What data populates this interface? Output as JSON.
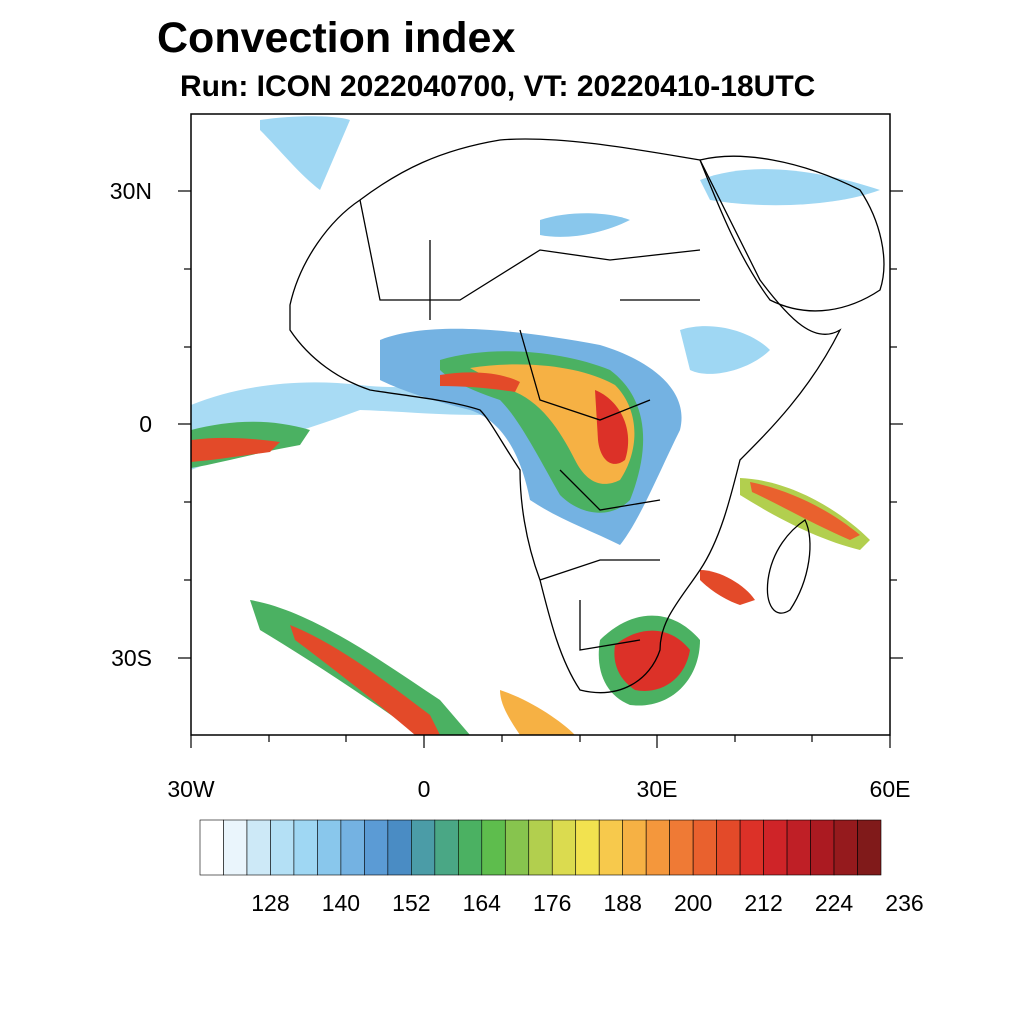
{
  "title": "Convection index",
  "subtitle": "Run: ICON 2022040700,  VT: 20220410-18UTC",
  "map": {
    "lat_labels": [
      "30N",
      "0",
      "30S"
    ],
    "lon_labels": [
      "30W",
      "0",
      "30E",
      "60E"
    ],
    "lon_range": [
      -30,
      60
    ],
    "lat_range": [
      -40,
      40
    ]
  },
  "colorbar": {
    "labels": [
      "128",
      "140",
      "152",
      "164",
      "176",
      "188",
      "200",
      "212",
      "224",
      "236"
    ],
    "colors": [
      "#ffffff",
      "#eaf5fc",
      "#cde9f7",
      "#b4e0f5",
      "#9fd7f3",
      "#89c7ec",
      "#74b2e2",
      "#5b9bd5",
      "#4a8cc4",
      "#4b9ca7",
      "#4aa785",
      "#4bb162",
      "#5ebd4d",
      "#87c44e",
      "#b2cf4e",
      "#dbdb4f",
      "#f2e24f",
      "#f7c94c",
      "#f6b144",
      "#f4973c",
      "#ef7a35",
      "#e9612e",
      "#e34a29",
      "#dc3128",
      "#cf2428",
      "#bf1f26",
      "#ab1a21",
      "#951a1d",
      "#801a1a"
    ]
  },
  "legend_colors": {
    "land_border": "#000000",
    "ocean": "#ffffff"
  }
}
